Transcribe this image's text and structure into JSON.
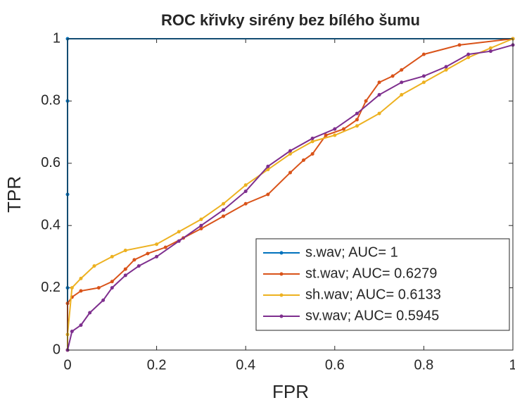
{
  "chart_data": {
    "type": "line",
    "title": "ROC křivky sirény bez bílého šumu",
    "xlabel": "FPR",
    "ylabel": "TPR",
    "xlim": [
      0,
      1
    ],
    "ylim": [
      0,
      1
    ],
    "xticks": [
      0,
      0.2,
      0.4,
      0.6,
      0.8,
      1
    ],
    "yticks": [
      0,
      0.2,
      0.4,
      0.6,
      0.8,
      1
    ],
    "legend": "lower right",
    "series": [
      {
        "name": "s.wav; AUC= 1",
        "color": "#0072BD",
        "x": [
          0,
          0,
          0,
          0,
          0,
          1
        ],
        "values": [
          0,
          0.2,
          0.5,
          0.8,
          1,
          1
        ]
      },
      {
        "name": "st.wav; AUC= 0.6279",
        "color": "#D95319",
        "x": [
          0,
          0,
          0.01,
          0.03,
          0.07,
          0.1,
          0.13,
          0.15,
          0.18,
          0.22,
          0.26,
          0.3,
          0.35,
          0.4,
          0.45,
          0.5,
          0.53,
          0.55,
          0.58,
          0.62,
          0.65,
          0.67,
          0.7,
          0.73,
          0.75,
          0.8,
          0.88,
          1
        ],
        "values": [
          0,
          0.15,
          0.17,
          0.19,
          0.2,
          0.22,
          0.26,
          0.29,
          0.31,
          0.33,
          0.36,
          0.39,
          0.43,
          0.47,
          0.5,
          0.57,
          0.61,
          0.63,
          0.69,
          0.71,
          0.74,
          0.8,
          0.86,
          0.88,
          0.9,
          0.95,
          0.98,
          1
        ]
      },
      {
        "name": "sh.wav; AUC= 0.6133",
        "color": "#EDB120",
        "x": [
          0,
          0,
          0.01,
          0.03,
          0.06,
          0.1,
          0.13,
          0.2,
          0.25,
          0.3,
          0.35,
          0.4,
          0.45,
          0.5,
          0.55,
          0.6,
          0.65,
          0.7,
          0.75,
          0.8,
          0.85,
          0.9,
          0.95,
          1
        ],
        "values": [
          0,
          0.05,
          0.2,
          0.23,
          0.27,
          0.3,
          0.32,
          0.34,
          0.38,
          0.42,
          0.47,
          0.53,
          0.58,
          0.63,
          0.67,
          0.69,
          0.72,
          0.76,
          0.82,
          0.86,
          0.9,
          0.94,
          0.97,
          1
        ]
      },
      {
        "name": "sv.wav; AUC= 0.5945",
        "color": "#7E2F8E",
        "x": [
          0,
          0.01,
          0.03,
          0.05,
          0.08,
          0.1,
          0.13,
          0.16,
          0.2,
          0.25,
          0.3,
          0.35,
          0.4,
          0.45,
          0.5,
          0.55,
          0.6,
          0.65,
          0.7,
          0.75,
          0.8,
          0.85,
          0.9,
          0.95,
          1
        ],
        "values": [
          0,
          0.06,
          0.08,
          0.12,
          0.16,
          0.2,
          0.24,
          0.27,
          0.3,
          0.35,
          0.4,
          0.45,
          0.51,
          0.59,
          0.64,
          0.68,
          0.71,
          0.76,
          0.82,
          0.86,
          0.88,
          0.91,
          0.95,
          0.96,
          0.98
        ]
      }
    ]
  }
}
